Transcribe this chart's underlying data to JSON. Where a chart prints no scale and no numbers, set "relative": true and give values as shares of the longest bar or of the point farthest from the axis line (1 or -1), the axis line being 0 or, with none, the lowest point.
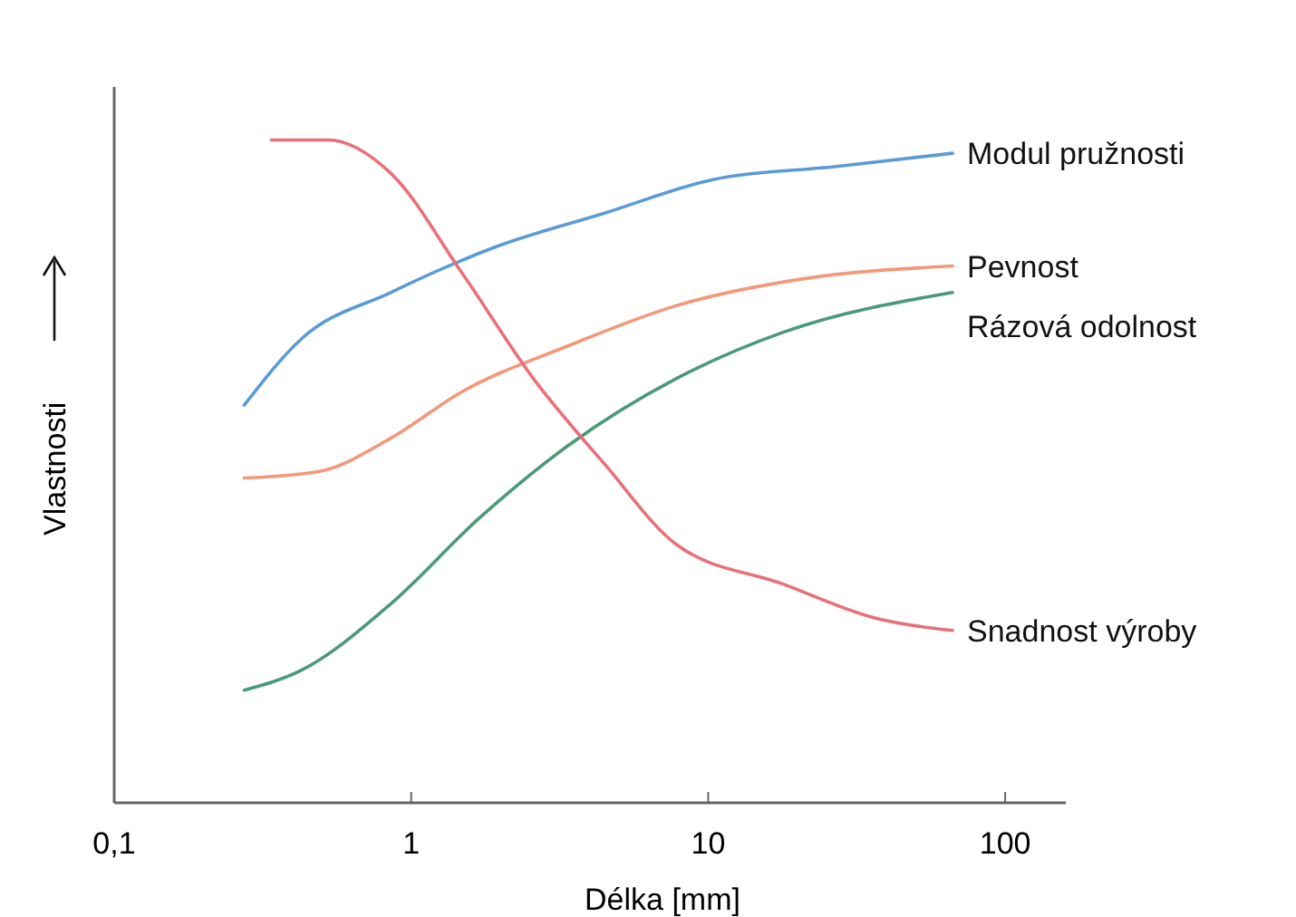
{
  "chart_data": {
    "type": "line",
    "xlabel": "Délka [mm]",
    "ylabel": "Vlastnosti",
    "log": "x",
    "relative": true,
    "xlim": [
      0.1,
      160
    ],
    "xticks": [
      {
        "value": 0.1,
        "label": "0,1"
      },
      1,
      10,
      100
    ],
    "grid": false,
    "marker": "none",
    "line_style": "solid",
    "series": [
      {
        "name": "Modul pružnosti",
        "color": "#5b9bd5",
        "x": [
          0.274,
          0.427,
          0.853,
          1.96,
          4.5,
          10.3,
          27,
          66.5
        ],
        "values": [
          0.6,
          0.7,
          0.77,
          0.84,
          0.89,
          0.94,
          0.96,
          0.98
        ]
      },
      {
        "name": "Pevnost",
        "color": "#f4977a",
        "x": [
          0.274,
          0.49,
          0.853,
          1.48,
          3.4,
          7.8,
          20.5,
          66.5
        ],
        "values": [
          0.49,
          0.5,
          0.55,
          0.62,
          0.69,
          0.75,
          0.79,
          0.81
        ]
      },
      {
        "name": "Rázová odolnost",
        "color": "#4a9a78",
        "x": [
          0.274,
          0.427,
          0.853,
          1.7,
          3.4,
          7.8,
          17.9,
          66.5
        ],
        "values": [
          0.17,
          0.2,
          0.3,
          0.43,
          0.54,
          0.64,
          0.71,
          0.77
        ]
      },
      {
        "name": "Snadnost výroby",
        "color": "#e8707a",
        "x": [
          0.338,
          0.526,
          0.853,
          1.48,
          2.58,
          4.5,
          7.8,
          17.9,
          35.7,
          66.5
        ],
        "values": [
          1,
          1,
          0.95,
          0.8,
          0.64,
          0.51,
          0.39,
          0.33,
          0.28,
          0.26
        ]
      }
    ]
  }
}
